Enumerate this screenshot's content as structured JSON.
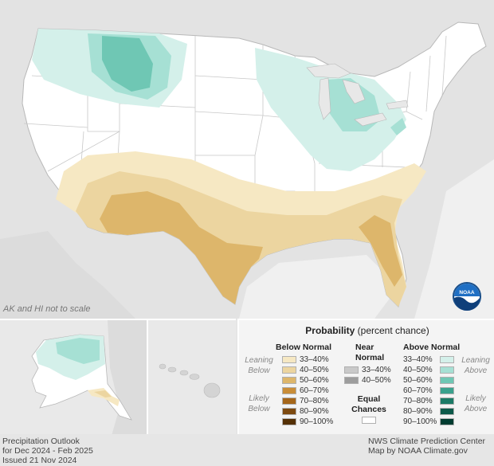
{
  "map_title_lines": [
    "Precipitation Outlook",
    "for Dec 2024 - Feb 2025",
    "Issued 21 Nov 2024"
  ],
  "credit_lines": [
    "NWS Climate Prediction Center",
    "Map by NOAA Climate.gov"
  ],
  "scale_note": "AK and HI not to scale",
  "logo_text": "NOAA",
  "legend": {
    "title_bold": "Probability",
    "title_rest": " (percent chance)",
    "below": {
      "header": "Below Normal",
      "side_top": [
        "Leaning",
        "Below"
      ],
      "side_bottom": [
        "Likely",
        "Below"
      ],
      "items": [
        {
          "label": "33–40%",
          "color": "#f6e8c3"
        },
        {
          "label": "40–50%",
          "color": "#ecd5a0"
        },
        {
          "label": "50–60%",
          "color": "#ddb66b"
        },
        {
          "label": "60–70%",
          "color": "#c98d38"
        },
        {
          "label": "70–80%",
          "color": "#a5661a"
        },
        {
          "label": "80–90%",
          "color": "#7d4a10"
        },
        {
          "label": "90–100%",
          "color": "#543005"
        }
      ]
    },
    "near": {
      "header_lines": [
        "Near",
        "Normal"
      ],
      "items": [
        {
          "label": "33–40%",
          "color": "#c9c9c9"
        },
        {
          "label": "40–50%",
          "color": "#9d9d9d"
        }
      ],
      "equal_lines": [
        "Equal",
        "Chances"
      ],
      "equal_color": "#ffffff"
    },
    "above": {
      "header": "Above Normal",
      "side_top": [
        "Leaning",
        "Above"
      ],
      "side_bottom": [
        "Likely",
        "Above"
      ],
      "items": [
        {
          "label": "33–40%",
          "color": "#d4f0ea"
        },
        {
          "label": "40–50%",
          "color": "#a6e0d4"
        },
        {
          "label": "50–60%",
          "color": "#6fc7b4"
        },
        {
          "label": "60–70%",
          "color": "#3aa18d"
        },
        {
          "label": "70–80%",
          "color": "#1c7a66"
        },
        {
          "label": "80–90%",
          "color": "#0d5a4a"
        },
        {
          "label": "90–100%",
          "color": "#003c30"
        }
      ]
    }
  }
}
